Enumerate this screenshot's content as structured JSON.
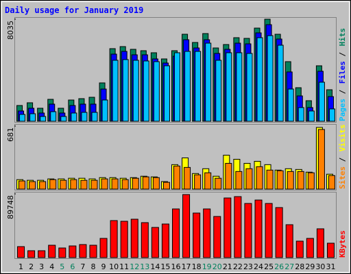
{
  "title": "Daily usage for January 2019",
  "chart_data": [
    {
      "type": "bar",
      "legend_separator": "/",
      "ylim": [
        0,
        8035
      ],
      "yticks": [
        8035
      ],
      "series": [
        {
          "name": "Hits",
          "color": "#00805c",
          "values": [
            1240,
            1456,
            1025,
            1726,
            1025,
            1672,
            1780,
            1888,
            3020,
            5716,
            5878,
            5663,
            5555,
            5393,
            4907,
            5555,
            6849,
            6202,
            6903,
            5770,
            6040,
            6579,
            6525,
            7334,
            8035,
            6849,
            4692,
            2642,
            1618,
            4368,
            2481
          ]
        },
        {
          "name": "Files",
          "color": "#0000ff",
          "values": [
            809,
            1025,
            647,
            1348,
            647,
            1240,
            1348,
            1348,
            2535,
            5285,
            5501,
            5231,
            5231,
            4907,
            4584,
            5123,
            6418,
            5770,
            6418,
            5339,
            5663,
            6148,
            6094,
            6957,
            7604,
            6472,
            3883,
            1995,
            1079,
            3937,
            1941
          ]
        },
        {
          "name": "Pages",
          "color": "#00c0ff",
          "values": [
            539,
            593,
            378,
            755,
            378,
            647,
            701,
            701,
            1672,
            4800,
            4854,
            4800,
            4746,
            4692,
            4368,
            5393,
            5501,
            5501,
            6148,
            4800,
            5393,
            5393,
            5339,
            6579,
            6741,
            5986,
            2535,
            1079,
            809,
            3074,
            971
          ]
        }
      ]
    },
    {
      "type": "bar",
      "legend_separator": "/",
      "ylim": [
        0,
        681
      ],
      "yticks": [
        681
      ],
      "series": [
        {
          "name": "Visits",
          "color": "#ffff00",
          "values": [
            102,
            95,
            95,
            110,
            110,
            117,
            117,
            110,
            124,
            124,
            117,
            124,
            139,
            132,
            81,
            264,
            337,
            168,
            220,
            139,
            366,
            322,
            278,
            300,
            264,
            205,
            220,
            212,
            183,
            666,
            161
          ]
        },
        {
          "name": "Sites",
          "color": "#ff8000",
          "values": [
            88,
            81,
            81,
            102,
            95,
            102,
            95,
            95,
            110,
            110,
            102,
            117,
            132,
            124,
            73,
            249,
            234,
            154,
            176,
            117,
            278,
            190,
            220,
            242,
            205,
            198,
            190,
            190,
            176,
            644,
            146
          ]
        }
      ]
    },
    {
      "type": "bar",
      "ylim": [
        0,
        89748
      ],
      "yticks": [
        89748
      ],
      "categories": [
        "1",
        "2",
        "3",
        "4",
        "5",
        "6",
        "7",
        "8",
        "9",
        "10",
        "11",
        "12",
        "13",
        "14",
        "15",
        "16",
        "17",
        "18",
        "19",
        "20",
        "21",
        "22",
        "23",
        "24",
        "25",
        "26",
        "27",
        "28",
        "29",
        "30",
        "31"
      ],
      "category_colors": [
        "#000000",
        "#000000",
        "#000000",
        "#000000",
        "#00805c",
        "#00805c",
        "#000000",
        "#000000",
        "#000000",
        "#000000",
        "#000000",
        "#00805c",
        "#00805c",
        "#000000",
        "#000000",
        "#000000",
        "#000000",
        "#000000",
        "#00805c",
        "#00805c",
        "#000000",
        "#000000",
        "#000000",
        "#000000",
        "#000000",
        "#00805c",
        "#00805c",
        "#000000",
        "#000000",
        "#000000",
        "#000000"
      ],
      "series": [
        {
          "name": "KBytes",
          "color": "#ff0000",
          "values": [
            15440,
            9650,
            9650,
            17370,
            13510,
            16405,
            18335,
            17370,
            27020,
            52110,
            51145,
            54040,
            49215,
            42460,
            47285,
            68515,
            88780,
            62725,
            68515,
            57900,
            83955,
            85885,
            76235,
            81060,
            76235,
            70445,
            46320,
            23160,
            27020,
            40530,
            20265
          ]
        }
      ]
    }
  ]
}
